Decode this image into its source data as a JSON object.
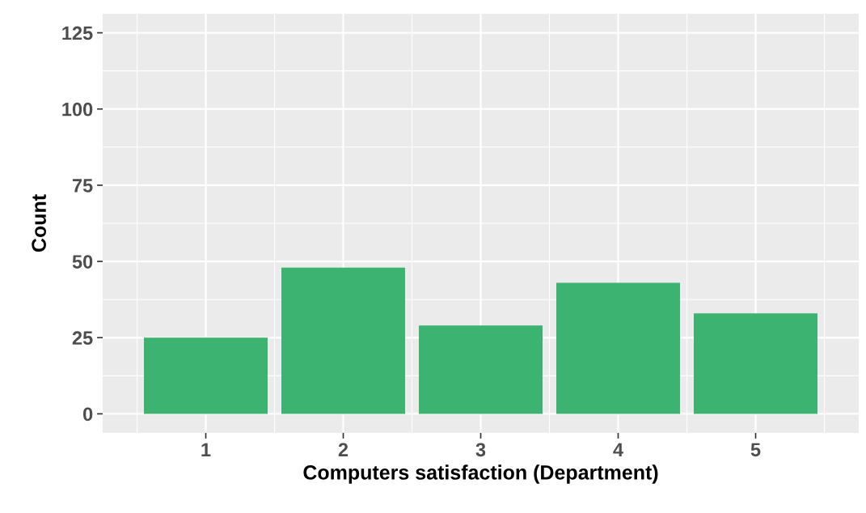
{
  "chart_data": {
    "type": "bar",
    "xlabel": "Computers satisfaction (Department)",
    "ylabel": "Count",
    "categories": [
      "1",
      "2",
      "3",
      "4",
      "5"
    ],
    "values": [
      25,
      48,
      29,
      43,
      33
    ],
    "color": "#3cb371",
    "ylim": [
      -6.25,
      131.25
    ],
    "yticks": [
      0,
      25,
      50,
      75,
      100,
      125
    ],
    "grid": true
  }
}
